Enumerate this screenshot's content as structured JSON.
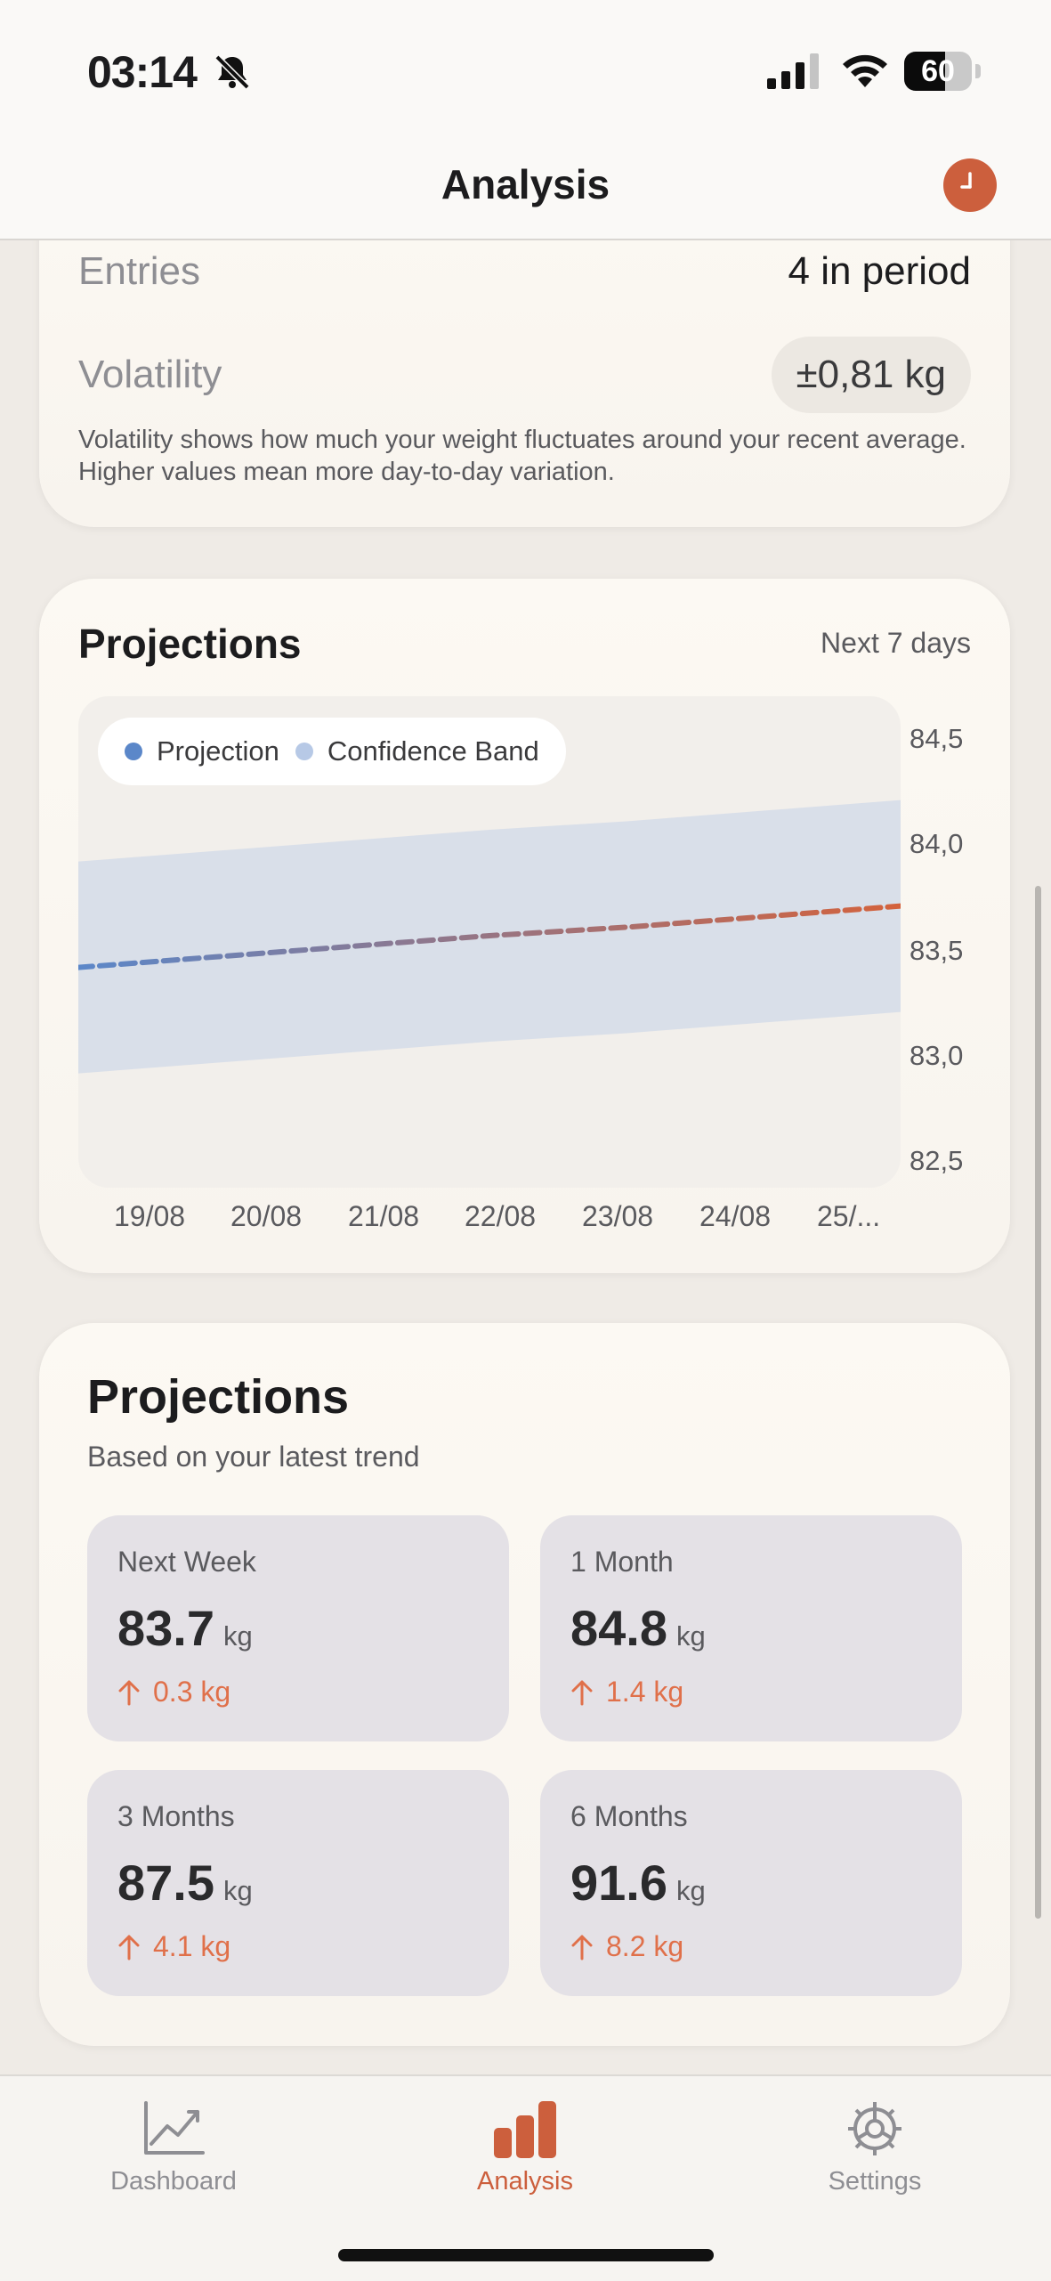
{
  "status_bar": {
    "time": "03:14",
    "battery": "60",
    "battery_level": 0.6
  },
  "nav": {
    "title": "Analysis",
    "action_icon": "clock-icon"
  },
  "stats": {
    "entries_label": "Entries",
    "entries_value": "4 in period",
    "volatility_label": "Volatility",
    "volatility_value": "±0,81 kg",
    "note": "Volatility shows how much your weight fluctuates around your recent average. Higher values mean more day-to-day variation."
  },
  "chart_card": {
    "title": "Projections",
    "range": "Next 7 days"
  },
  "chart_data": {
    "type": "line",
    "x": [
      "19/08",
      "20/08",
      "21/08",
      "22/08",
      "23/08",
      "24/08",
      "25/..."
    ],
    "series": [
      {
        "name": "Projection",
        "values": [
          83.43,
          83.48,
          83.53,
          83.58,
          83.62,
          83.67,
          83.72
        ],
        "color_start": "#5b87c9",
        "color_end": "#d4623c"
      },
      {
        "name": "Confidence Band",
        "upper": [
          83.93,
          83.98,
          84.03,
          84.08,
          84.12,
          84.17,
          84.22
        ],
        "lower": [
          82.93,
          82.98,
          83.03,
          83.08,
          83.12,
          83.17,
          83.22
        ],
        "color": "#b7c9e6"
      }
    ],
    "y_ticks": [
      "84,5",
      "84,0",
      "83,5",
      "83,0",
      "82,5"
    ],
    "ylim": [
      82.5,
      84.5
    ],
    "legend_placement": "top-left",
    "grid": false
  },
  "projections": {
    "title": "Projections",
    "subtitle": "Based on your latest trend",
    "unit": "kg",
    "tiles": [
      {
        "label": "Next Week",
        "value": "83.7",
        "delta": "0.3 kg"
      },
      {
        "label": "1 Month",
        "value": "84.8",
        "delta": "1.4 kg"
      },
      {
        "label": "3 Months",
        "value": "87.5",
        "delta": "4.1 kg"
      },
      {
        "label": "6 Months",
        "value": "91.6",
        "delta": "8.2 kg"
      }
    ]
  },
  "tabs": [
    {
      "label": "Dashboard",
      "icon": "line-chart-icon"
    },
    {
      "label": "Analysis",
      "icon": "bar-chart-icon"
    },
    {
      "label": "Settings",
      "icon": "gear-icon"
    }
  ],
  "colors": {
    "accent": "#cc5f3d",
    "delta": "#e0704a"
  }
}
